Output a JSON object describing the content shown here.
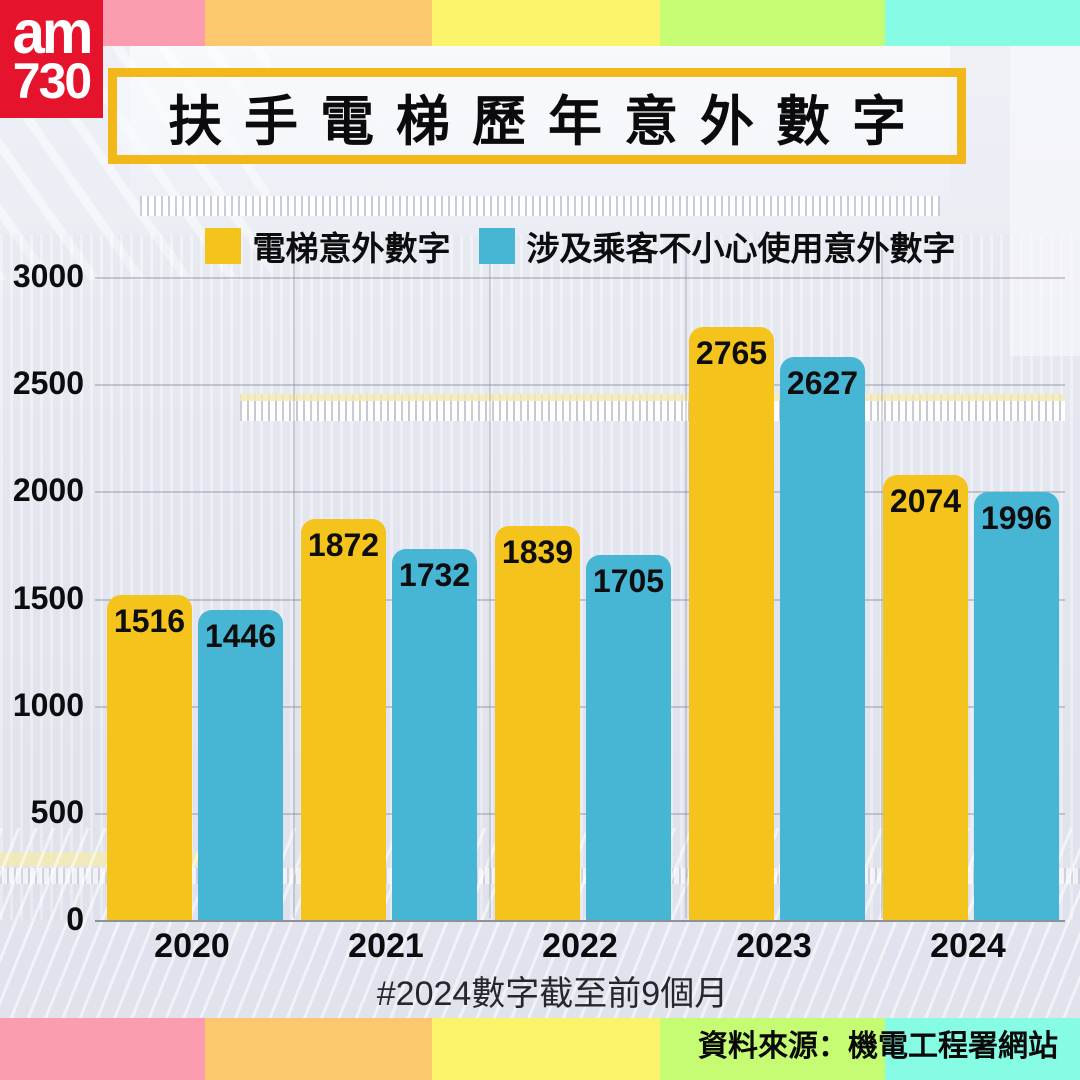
{
  "logo": {
    "line1": "am",
    "line2": "730",
    "background": "#E6132C"
  },
  "header": {
    "title": "扶手電梯歷年意外數字",
    "border_color": "#F2B718"
  },
  "legend": [
    {
      "label": "電梯意外數字",
      "color": "#F5C41C"
    },
    {
      "label": "涉及乘客不小心使用意外數字",
      "color": "#47B6D4"
    }
  ],
  "note": "#2024數字截至前9個月",
  "source": "資料來源：機電工程署網站",
  "palette": {
    "stripe": [
      "#FB9DAE",
      "#FBC76F",
      "#FBF46B",
      "#C5FC73",
      "#87FCE5"
    ],
    "bar_yellow": "#F5C41C",
    "bar_blue": "#47B6D4"
  },
  "chart_data": {
    "type": "bar",
    "title": "扶手電梯歷年意外數字",
    "categories": [
      "2020",
      "2021",
      "2022",
      "2023",
      "2024"
    ],
    "series": [
      {
        "name": "電梯意外數字",
        "color": "#F5C41C",
        "values": [
          1516,
          1872,
          1839,
          2765,
          2074
        ]
      },
      {
        "name": "涉及乘客不小心使用意外數字",
        "color": "#47B6D4",
        "values": [
          1446,
          1732,
          1705,
          2627,
          1996
        ]
      }
    ],
    "ylim": [
      0,
      3000
    ],
    "yticks": [
      0,
      500,
      1000,
      1500,
      2000,
      2500,
      3000
    ],
    "grid": "horizontal",
    "legend_position": "top",
    "value_labels": "inside-top",
    "footnote": "#2024數字截至前9個月",
    "source": "資料來源：機電工程署網站"
  }
}
